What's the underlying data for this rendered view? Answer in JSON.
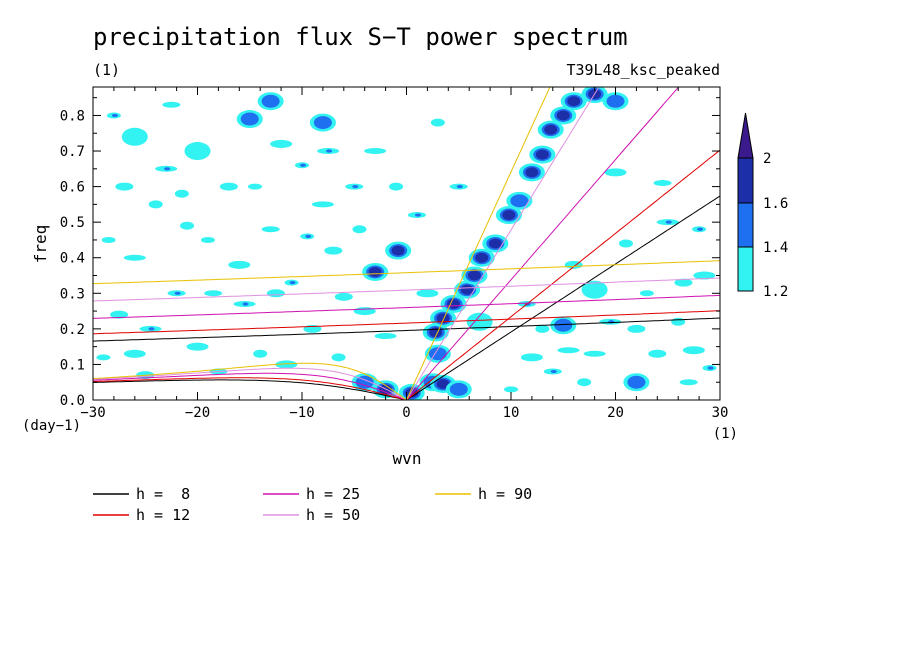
{
  "chart_data": {
    "type": "heatmap",
    "title": "precipitation flux S−T power spectrum",
    "units_label": "(1)",
    "run_label": "T39L48_ksc_peaked",
    "xlabel": "wvn",
    "ylabel": "freq",
    "x_units": "(1)",
    "y_units": "(day−1)",
    "xlim": [
      -30,
      30
    ],
    "ylim": [
      0,
      0.88
    ],
    "xticks": [
      -30,
      -20,
      -10,
      0,
      10,
      20,
      30
    ],
    "xtick_labels": [
      "−30",
      "−20",
      "−10",
      "0",
      "10",
      "20",
      "30"
    ],
    "yticks": [
      0.0,
      0.1,
      0.2,
      0.3,
      0.4,
      0.5,
      0.6,
      0.7,
      0.8
    ],
    "ytick_labels": [
      "0.0",
      "0.1",
      "0.2",
      "0.3",
      "0.4",
      "0.5",
      "0.6",
      "0.7",
      "0.8"
    ],
    "colorbar": {
      "levels": [
        1.2,
        1.4,
        1.6,
        2
      ],
      "level_labels": [
        "1.2",
        "1.4",
        "1.6",
        "2"
      ],
      "colors": [
        "#33f2f2",
        "#1f70f0",
        "#1c2ea8",
        "#3a1a8c"
      ]
    },
    "dispersion_curves": [
      {
        "label": "h =  8",
        "h": 8,
        "color": "#000000"
      },
      {
        "label": "h = 12",
        "h": 12,
        "color": "#e00000"
      },
      {
        "label": "h = 25",
        "h": 25,
        "color": "#d010b0"
      },
      {
        "label": "h = 50",
        "h": 50,
        "color": "#e090e0"
      },
      {
        "label": "h = 90",
        "h": 90,
        "color": "#e8c000"
      }
    ],
    "signal_blobs": [
      {
        "x": 0.5,
        "y": 0.02,
        "level": 3
      },
      {
        "x": 2.5,
        "y": 0.05,
        "level": 2
      },
      {
        "x": 3.5,
        "y": 0.045,
        "level": 3
      },
      {
        "x": 5,
        "y": 0.03,
        "level": 2
      },
      {
        "x": 3,
        "y": 0.13,
        "level": 2
      },
      {
        "x": 2.8,
        "y": 0.19,
        "level": 3
      },
      {
        "x": 3.5,
        "y": 0.23,
        "level": 3
      },
      {
        "x": 4.5,
        "y": 0.27,
        "level": 3
      },
      {
        "x": 5.8,
        "y": 0.31,
        "level": 3
      },
      {
        "x": 6.5,
        "y": 0.35,
        "level": 3
      },
      {
        "x": 7.2,
        "y": 0.4,
        "level": 3
      },
      {
        "x": 8.5,
        "y": 0.44,
        "level": 3
      },
      {
        "x": 9.8,
        "y": 0.52,
        "level": 3
      },
      {
        "x": 10.8,
        "y": 0.56,
        "level": 2
      },
      {
        "x": 12,
        "y": 0.64,
        "level": 3
      },
      {
        "x": 13,
        "y": 0.69,
        "level": 3
      },
      {
        "x": 13.8,
        "y": 0.76,
        "level": 3
      },
      {
        "x": 15,
        "y": 0.8,
        "level": 3
      },
      {
        "x": 16,
        "y": 0.84,
        "level": 3
      },
      {
        "x": 18,
        "y": 0.86,
        "level": 3
      },
      {
        "x": 20,
        "y": 0.84,
        "level": 2
      },
      {
        "x": -0.8,
        "y": 0.42,
        "level": 3
      },
      {
        "x": -3,
        "y": 0.36,
        "level": 3
      },
      {
        "x": -2,
        "y": 0.03,
        "level": 3
      },
      {
        "x": -4,
        "y": 0.05,
        "level": 2
      },
      {
        "x": 7,
        "y": 0.22,
        "level": 1
      },
      {
        "x": 15,
        "y": 0.21,
        "level": 2
      },
      {
        "x": 22,
        "y": 0.05,
        "level": 2
      },
      {
        "x": -15,
        "y": 0.79,
        "level": 2
      },
      {
        "x": -13,
        "y": 0.84,
        "level": 2
      },
      {
        "x": -8,
        "y": 0.78,
        "level": 2
      },
      {
        "x": -20,
        "y": 0.7,
        "level": 1
      },
      {
        "x": -26,
        "y": 0.74,
        "level": 1
      },
      {
        "x": 18,
        "y": 0.31,
        "level": 1
      }
    ],
    "background_speckle": [
      [
        -28,
        0.8
      ],
      [
        -27.5,
        0.24
      ],
      [
        -26,
        0.4
      ],
      [
        -24,
        0.55
      ],
      [
        -22,
        0.3
      ],
      [
        -20,
        0.15
      ],
      [
        -19,
        0.45
      ],
      [
        -17,
        0.6
      ],
      [
        -15.5,
        0.27
      ],
      [
        -14,
        0.13
      ],
      [
        -13,
        0.48
      ],
      [
        -12,
        0.72
      ],
      [
        -11,
        0.33
      ],
      [
        -9,
        0.2
      ],
      [
        -8,
        0.55
      ],
      [
        -6.5,
        0.12
      ],
      [
        -5,
        0.6
      ],
      [
        -4,
        0.25
      ],
      [
        -29,
        0.12
      ],
      [
        -25,
        0.07
      ],
      [
        -23,
        0.65
      ],
      [
        -21,
        0.49
      ],
      [
        -18,
        0.08
      ],
      [
        -16,
        0.38
      ],
      [
        -10,
        0.66
      ],
      [
        -7,
        0.42
      ],
      [
        -2,
        0.18
      ],
      [
        -1,
        0.6
      ],
      [
        1,
        0.52
      ],
      [
        2,
        0.3
      ],
      [
        -28.5,
        0.45
      ],
      [
        -27,
        0.6
      ],
      [
        -24.5,
        0.2
      ],
      [
        -21.5,
        0.58
      ],
      [
        -18.5,
        0.3
      ],
      [
        -11.5,
        0.1
      ],
      [
        -9.5,
        0.46
      ],
      [
        -6,
        0.29
      ],
      [
        -3,
        0.7
      ],
      [
        3,
        0.78
      ],
      [
        5,
        0.6
      ],
      [
        20,
        0.64
      ],
      [
        23,
        0.3
      ],
      [
        24,
        0.13
      ],
      [
        25,
        0.5
      ],
      [
        26,
        0.22
      ],
      [
        27,
        0.05
      ],
      [
        28.5,
        0.35
      ],
      [
        29,
        0.09
      ],
      [
        22,
        0.2
      ],
      [
        18,
        0.13
      ],
      [
        17,
        0.05
      ],
      [
        14,
        0.08
      ],
      [
        12,
        0.12
      ],
      [
        10,
        0.03
      ],
      [
        16,
        0.38
      ],
      [
        19.5,
        0.22
      ],
      [
        21,
        0.44
      ],
      [
        24.5,
        0.61
      ],
      [
        27.5,
        0.14
      ],
      [
        28,
        0.48
      ],
      [
        26.5,
        0.33
      ],
      [
        15.5,
        0.14
      ],
      [
        13,
        0.2
      ],
      [
        11.5,
        0.27
      ],
      [
        -26,
        0.13
      ],
      [
        -14.5,
        0.6
      ],
      [
        -12.5,
        0.3
      ],
      [
        -7.5,
        0.7
      ],
      [
        -4.5,
        0.48
      ],
      [
        -22.5,
        0.83
      ]
    ]
  }
}
